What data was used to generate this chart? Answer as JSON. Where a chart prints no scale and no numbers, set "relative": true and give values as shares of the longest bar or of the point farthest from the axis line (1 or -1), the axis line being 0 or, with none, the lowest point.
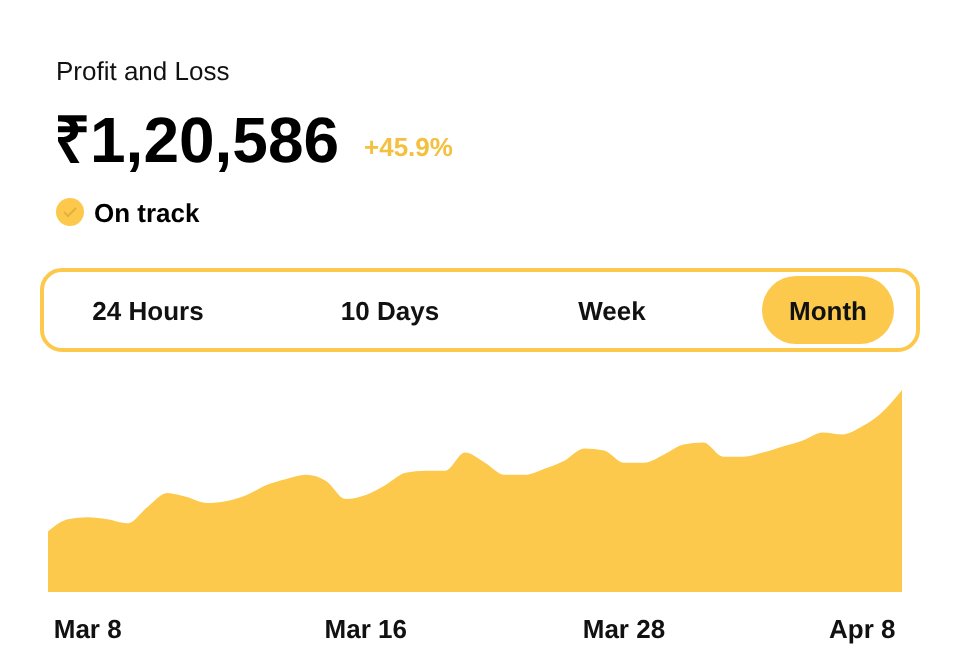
{
  "chart_data": {
    "type": "area",
    "title": "Profit and Loss",
    "subtitle": "₹1,20,586",
    "relative": true,
    "color": "#fdc94c",
    "annotations": [
      "+45.9%",
      "On track",
      "24 Hours",
      "10 Days",
      "Week",
      "Month"
    ],
    "categories": [
      null,
      null,
      "Mar 8",
      null,
      null,
      null,
      null,
      null,
      null,
      null,
      null,
      null,
      null,
      null,
      null,
      null,
      "Mar 16",
      null,
      null,
      null,
      null,
      null,
      null,
      null,
      null,
      null,
      null,
      null,
      null,
      "Mar 28",
      null,
      null,
      null,
      null,
      null,
      null,
      null,
      null,
      null,
      null,
      null,
      "Apr 8",
      null,
      null
    ],
    "values": [
      0.3,
      0.36,
      0.37,
      0.36,
      0.34,
      0.42,
      0.49,
      0.47,
      0.44,
      0.45,
      0.48,
      0.53,
      0.56,
      0.58,
      0.55,
      0.46,
      0.48,
      0.53,
      0.59,
      0.6,
      0.6,
      0.69,
      0.64,
      0.58,
      0.58,
      0.61,
      0.65,
      0.71,
      0.7,
      0.64,
      0.64,
      0.68,
      0.73,
      0.74,
      0.67,
      0.67,
      0.69,
      0.72,
      0.75,
      0.79,
      0.78,
      0.82,
      0.89,
      1
    ]
  }
}
